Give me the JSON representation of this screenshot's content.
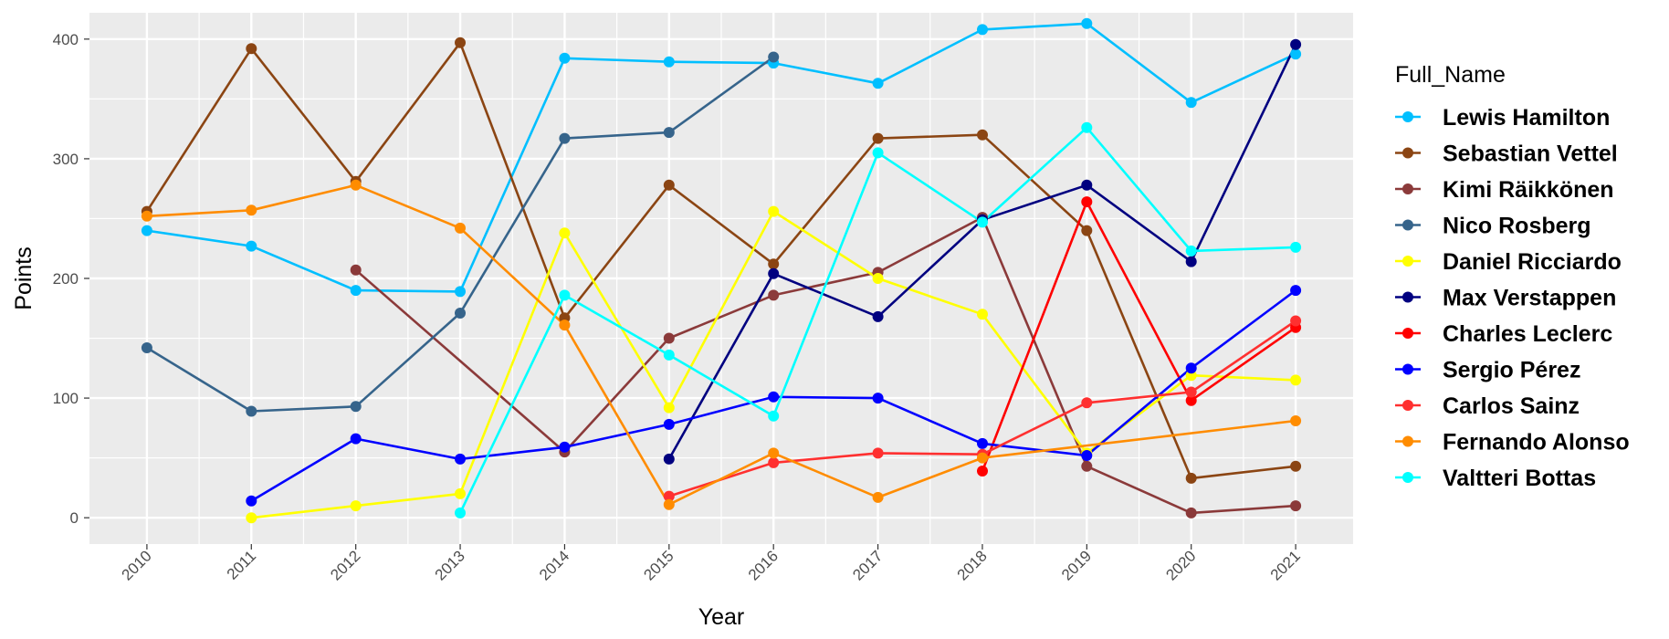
{
  "chart_data": {
    "type": "line",
    "xlabel": "Year",
    "ylabel": "Points",
    "x": [
      2010,
      2011,
      2012,
      2013,
      2014,
      2015,
      2016,
      2017,
      2018,
      2019,
      2020,
      2021
    ],
    "xlim": [
      2009.45,
      2021.55
    ],
    "ylim": [
      -22,
      422
    ],
    "yticks": [
      0,
      100,
      200,
      300,
      400
    ],
    "grid": true,
    "legend_title": "Full_Name",
    "legend_position": "right",
    "series": [
      {
        "name": "Lewis Hamilton",
        "color": "#00BFFF",
        "points": [
          [
            2010,
            240
          ],
          [
            2011,
            227
          ],
          [
            2012,
            190
          ],
          [
            2013,
            189
          ],
          [
            2014,
            384
          ],
          [
            2015,
            381
          ],
          [
            2016,
            380
          ],
          [
            2017,
            363
          ],
          [
            2018,
            408
          ],
          [
            2019,
            413
          ],
          [
            2020,
            347
          ],
          [
            2021,
            387.5
          ]
        ]
      },
      {
        "name": "Sebastian Vettel",
        "color": "#8B4513",
        "points": [
          [
            2010,
            256
          ],
          [
            2011,
            392
          ],
          [
            2012,
            281
          ],
          [
            2013,
            397
          ],
          [
            2014,
            167
          ],
          [
            2015,
            278
          ],
          [
            2016,
            212
          ],
          [
            2017,
            317
          ],
          [
            2018,
            320
          ],
          [
            2019,
            240
          ],
          [
            2020,
            33
          ],
          [
            2021,
            43
          ]
        ]
      },
      {
        "name": "Kimi Räikkönen",
        "color": "#8B3A3A",
        "points": [
          [
            2012,
            207
          ],
          [
            2014,
            55
          ],
          [
            2015,
            150
          ],
          [
            2016,
            186
          ],
          [
            2017,
            205
          ],
          [
            2018,
            251
          ],
          [
            2019,
            43
          ],
          [
            2020,
            4
          ],
          [
            2021,
            10
          ]
        ]
      },
      {
        "name": "Nico Rosberg",
        "color": "#36648B",
        "points": [
          [
            2010,
            142
          ],
          [
            2011,
            89
          ],
          [
            2012,
            93
          ],
          [
            2013,
            171
          ],
          [
            2014,
            317
          ],
          [
            2015,
            322
          ],
          [
            2016,
            385
          ]
        ]
      },
      {
        "name": "Daniel Ricciardo",
        "color": "#FFFF00",
        "points": [
          [
            2011,
            0
          ],
          [
            2012,
            10
          ],
          [
            2013,
            20
          ],
          [
            2014,
            238
          ],
          [
            2015,
            92
          ],
          [
            2016,
            256
          ],
          [
            2017,
            200
          ],
          [
            2018,
            170
          ],
          [
            2019,
            54
          ],
          [
            2020,
            119
          ],
          [
            2021,
            115
          ]
        ]
      },
      {
        "name": "Max Verstappen",
        "color": "#000080",
        "points": [
          [
            2015,
            49
          ],
          [
            2016,
            204
          ],
          [
            2017,
            168
          ],
          [
            2018,
            249
          ],
          [
            2019,
            278
          ],
          [
            2020,
            214
          ],
          [
            2021,
            395.5
          ]
        ]
      },
      {
        "name": "Charles Leclerc",
        "color": "#FF0000",
        "points": [
          [
            2018,
            39
          ],
          [
            2019,
            264
          ],
          [
            2020,
            98
          ],
          [
            2021,
            159
          ]
        ]
      },
      {
        "name": "Sergio Pérez",
        "color": "#0000FF",
        "points": [
          [
            2011,
            14
          ],
          [
            2012,
            66
          ],
          [
            2013,
            49
          ],
          [
            2014,
            59
          ],
          [
            2015,
            78
          ],
          [
            2016,
            101
          ],
          [
            2017,
            100
          ],
          [
            2018,
            62
          ],
          [
            2019,
            52
          ],
          [
            2020,
            125
          ],
          [
            2021,
            190
          ]
        ]
      },
      {
        "name": "Carlos Sainz",
        "color": "#FF3030",
        "points": [
          [
            2015,
            18
          ],
          [
            2016,
            46
          ],
          [
            2017,
            54
          ],
          [
            2018,
            53
          ],
          [
            2019,
            96
          ],
          [
            2020,
            105
          ],
          [
            2021,
            164.5
          ]
        ]
      },
      {
        "name": "Fernando Alonso",
        "color": "#FF8C00",
        "points": [
          [
            2010,
            252
          ],
          [
            2011,
            257
          ],
          [
            2012,
            278
          ],
          [
            2013,
            242
          ],
          [
            2014,
            161
          ],
          [
            2015,
            11
          ],
          [
            2016,
            54
          ],
          [
            2017,
            17
          ],
          [
            2018,
            50
          ],
          [
            2021,
            81
          ]
        ]
      },
      {
        "name": "Valtteri Bottas",
        "color": "#00FFFF",
        "points": [
          [
            2013,
            4
          ],
          [
            2014,
            186
          ],
          [
            2015,
            136
          ],
          [
            2016,
            85
          ],
          [
            2017,
            305
          ],
          [
            2018,
            247
          ],
          [
            2019,
            326
          ],
          [
            2020,
            223
          ],
          [
            2021,
            226
          ]
        ]
      }
    ]
  }
}
